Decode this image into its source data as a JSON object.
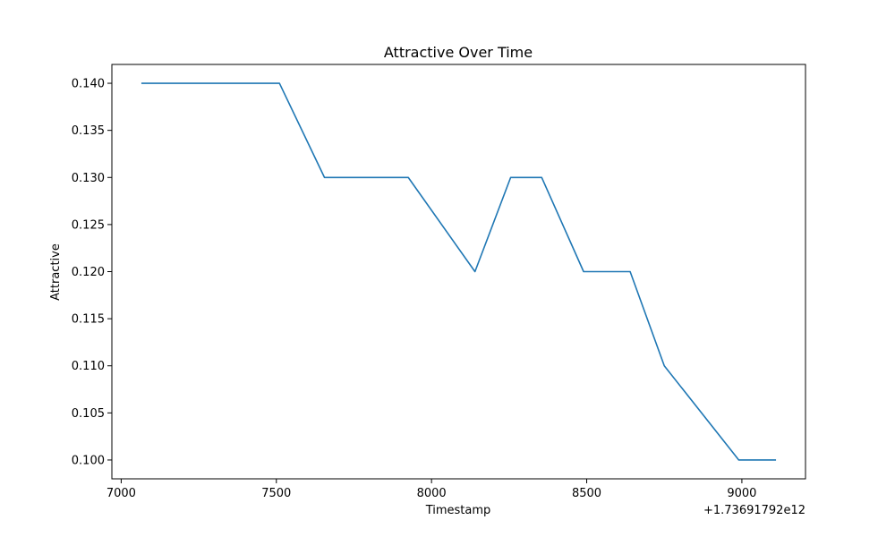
{
  "chart_data": {
    "type": "line",
    "title": "Attractive Over Time",
    "xlabel": "Timestamp",
    "ylabel": "Attractive",
    "x_offset_label": "+1.73691792e12",
    "x": [
      7065,
      7510,
      7655,
      7925,
      8140,
      8255,
      8355,
      8490,
      8640,
      8750,
      8990,
      9110
    ],
    "series": [
      {
        "name": "",
        "values": [
          0.14,
          0.14,
          0.13,
          0.13,
          0.12,
          0.13,
          0.13,
          0.12,
          0.12,
          0.11,
          0.1,
          0.1
        ],
        "color": "#1f77b4"
      }
    ],
    "xlim": [
      6970,
      9205
    ],
    "ylim": [
      0.098,
      0.142
    ],
    "xticks": [
      7000,
      7500,
      8000,
      8500,
      9000
    ],
    "xtick_labels": [
      "7000",
      "7500",
      "8000",
      "8500",
      "9000"
    ],
    "yticks": [
      0.1,
      0.105,
      0.11,
      0.115,
      0.12,
      0.125,
      0.13,
      0.135,
      0.14
    ],
    "ytick_labels": [
      "0.100",
      "0.105",
      "0.110",
      "0.115",
      "0.120",
      "0.125",
      "0.130",
      "0.135",
      "0.140"
    ],
    "grid": false,
    "legend": "none"
  }
}
